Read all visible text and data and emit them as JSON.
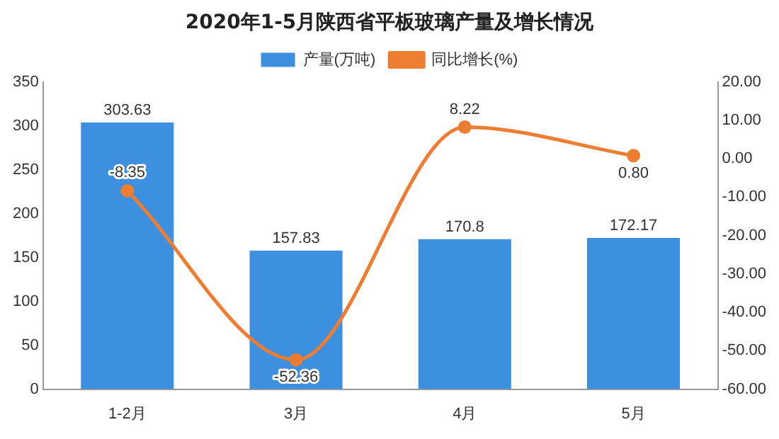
{
  "chart_data": {
    "type": "bar",
    "title": "2020年1-5月陕西省平板玻璃产量及增长情况",
    "categories": [
      "1-2月",
      "3月",
      "4月",
      "5月"
    ],
    "series": [
      {
        "name": "产量(万吨)",
        "color": "#3d8fe0",
        "values": [
          303.63,
          157.83,
          170.8,
          172.17
        ],
        "value_labels": [
          "303.63",
          "157.83",
          "170.8",
          "172.17"
        ]
      },
      {
        "name": "同比增长(%)",
        "type": "line",
        "axis": "y2",
        "color": "#ed7d31",
        "values": [
          -8.35,
          -52.36,
          8.22,
          0.8
        ],
        "value_labels": [
          "-8.35",
          "-52.36",
          "8.22",
          "0.80"
        ]
      }
    ],
    "ylim": [
      0,
      350
    ],
    "yticks": [
      0,
      50,
      100,
      150,
      200,
      250,
      300,
      350
    ],
    "y2lim": [
      -60,
      20
    ],
    "y2ticks": [
      {
        "value": -60,
        "label": "-60.00"
      },
      {
        "value": -50,
        "label": "-50.00"
      },
      {
        "value": -40,
        "label": "-40.00"
      },
      {
        "value": -30,
        "label": "-30.00"
      },
      {
        "value": -20,
        "label": "-20.00"
      },
      {
        "value": -10,
        "label": "-10.00"
      },
      {
        "value": 0,
        "label": "0.00"
      },
      {
        "value": 10,
        "label": "10.00"
      },
      {
        "value": 20,
        "label": "20.00"
      }
    ],
    "legend": "top",
    "grid": false,
    "marker": "circle",
    "line_style": "solid"
  }
}
